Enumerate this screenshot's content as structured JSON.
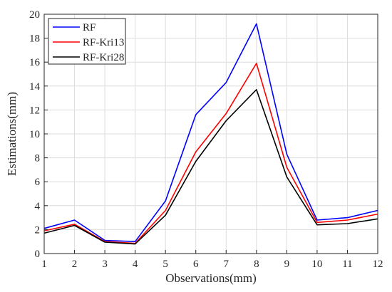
{
  "chart_data": {
    "type": "line",
    "xlabel": "Observations(mm)",
    "ylabel": "Estimations(mm)",
    "x": [
      1,
      2,
      3,
      4,
      5,
      6,
      7,
      8,
      9,
      10,
      11,
      12
    ],
    "xlim": [
      1,
      12
    ],
    "ylim": [
      0,
      20
    ],
    "xticks": [
      1,
      2,
      3,
      4,
      5,
      6,
      7,
      8,
      9,
      10,
      11,
      12
    ],
    "yticks": [
      0,
      2,
      4,
      6,
      8,
      10,
      12,
      14,
      16,
      18,
      20
    ],
    "grid": true,
    "legend_position": "top-left",
    "series": [
      {
        "name": "RF",
        "color": "#0000ff",
        "values": [
          2.1,
          2.8,
          1.1,
          1.0,
          4.4,
          11.6,
          14.3,
          19.2,
          8.3,
          2.8,
          3.0,
          3.6
        ]
      },
      {
        "name": "RF-Kri13",
        "color": "#ff0000",
        "values": [
          1.9,
          2.45,
          1.0,
          0.85,
          3.6,
          8.5,
          11.7,
          15.9,
          7.2,
          2.6,
          2.8,
          3.3
        ]
      },
      {
        "name": "RF-Kri28",
        "color": "#000000",
        "values": [
          1.7,
          2.35,
          0.95,
          0.8,
          3.2,
          7.7,
          11.1,
          13.7,
          6.4,
          2.4,
          2.5,
          2.9
        ]
      }
    ]
  }
}
